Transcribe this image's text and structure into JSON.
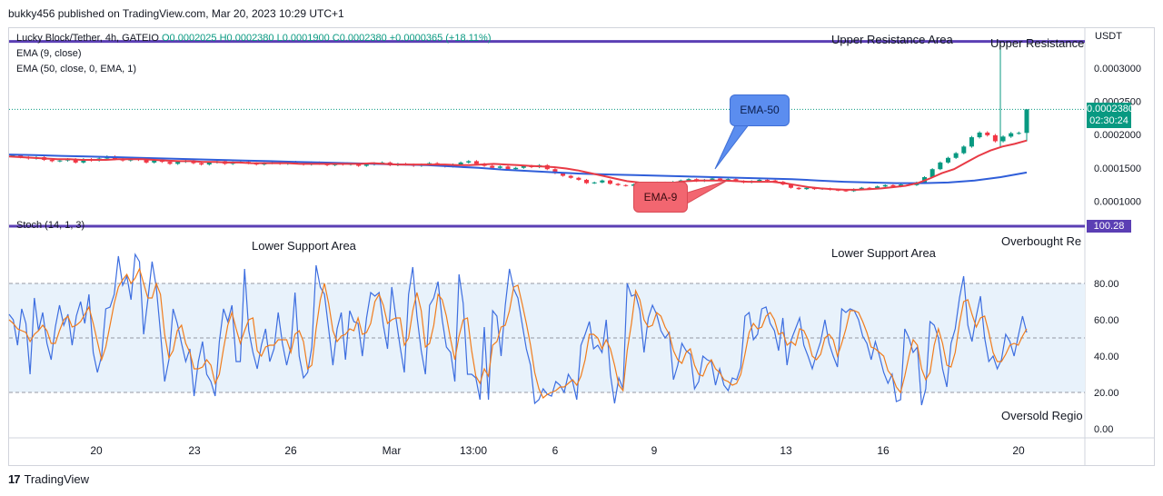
{
  "header": {
    "publisher_line": "bukky456 published on TradingView.com, Mar 20, 2023 10:29 UTC+1"
  },
  "legend": {
    "symbol": "Lucky Block/Tether, 4h, GATEIO",
    "ohlc": "O0.0002025  H0.0002380  L0.0001900  C0.0002380  +0.0000365 (+18.11%)",
    "ema9": "EMA (9, close)",
    "ema50": "EMA (50, close, 0, EMA, 1)",
    "stoch": "Stoch (14, 1, 3)"
  },
  "price_axis": {
    "currency": "USDT",
    "current_price": "0.0002380",
    "countdown": "02:30:24",
    "stoch_level": "100.28"
  },
  "annotations": {
    "upper_resistance_area": "Upper Resistance Area",
    "upper_resistance_right": "Upper Resistance",
    "lower_support_area_1": "Lower Support Area",
    "lower_support_area_2": "Lower Support Area",
    "overbought": "Overbought Re",
    "oversold": "Oversold Regio",
    "ema50_callout": "EMA-50",
    "ema9_callout": "EMA-9"
  },
  "colors": {
    "up": "#089981",
    "down": "#f23645",
    "ema9": "#e83a45",
    "ema50": "#2f5ed9",
    "stoch_k": "#3d6ee0",
    "stoch_d": "#f07c1c",
    "resistance_line": "#5b3fb4",
    "stoch_band": "#e8f2fb",
    "callout_blue": "#5b8def",
    "callout_red": "#f26670"
  },
  "footer": {
    "brand": "TradingView"
  },
  "chart_data": [
    {
      "type": "candlestick",
      "title": "Lucky Block/Tether, 4h, GATEIO",
      "ylabel": "USDT",
      "ylim": [
        8e-05,
        0.00036
      ],
      "yticks": [
        "0.0001000",
        "0.0001500",
        "0.0002000",
        "0.0002500",
        "0.0003000"
      ],
      "xticks": [
        "20",
        "23",
        "26",
        "Mar",
        "13:00",
        "6",
        "9",
        "13",
        "16",
        "20"
      ],
      "ohlc_last": {
        "open": 0.0002025,
        "high": 0.000238,
        "low": 0.00019,
        "close": 0.000238,
        "change": 3.65e-05,
        "change_pct": 18.11
      },
      "resistance_level": 0.00034,
      "close_approx": [
        0.000169,
        0.000166,
        0.000164,
        0.000166,
        0.000162,
        0.00016,
        0.000161,
        0.000163,
        0.000158,
        0.000163,
        0.000161,
        0.000164,
        0.000167,
        0.000163,
        0.000161,
        0.000164,
        0.000162,
        0.000158,
        0.000161,
        0.000159,
        0.000156,
        0.000159,
        0.000161,
        0.000157,
        0.000155,
        0.000158,
        0.00016,
        0.000156,
        0.000158,
        0.000159,
        0.000157,
        0.000155,
        0.000157,
        0.000158,
        0.000156,
        0.000159,
        0.000157,
        0.000155,
        0.000158,
        0.000156,
        0.000154,
        0.000157,
        0.000155,
        0.000156,
        0.000153,
        0.000155,
        0.000157,
        0.000158,
        0.000154,
        0.000156,
        0.000155,
        0.000153,
        0.000155,
        0.000157,
        0.000154,
        0.000152,
        0.000155,
        0.000158,
        0.00016,
        0.000156,
        0.000153,
        0.00015,
        0.000152,
        0.000148,
        0.00015,
        0.000153,
        0.000151,
        0.000154,
        0.000148,
        0.000142,
        0.000138,
        0.000135,
        0.000132,
        0.000127,
        0.000128,
        0.000131,
        0.000126,
        0.000124,
        0.000123,
        0.000125,
        0.000122,
        0.000126,
        0.000128,
        0.000125,
        0.000129,
        0.000131,
        0.000133,
        0.00013,
        0.000132,
        0.000134,
        0.000131,
        0.000133,
        0.00013,
        0.000128,
        0.00013,
        0.000132,
        0.000131,
        0.000129,
        0.000125,
        0.00012,
        0.000118,
        0.00012,
        0.000118,
        0.000119,
        0.000117,
        0.000116,
        0.000115,
        0.000118,
        0.00012,
        0.000119,
        0.000122,
        0.000124,
        0.000122,
        0.000125,
        0.000124,
        0.000128,
        0.000136,
        0.000148,
        0.000158,
        0.000165,
        0.000172,
        0.000182,
        0.000196,
        0.000203,
        0.000199,
        0.00019,
        0.000197,
        0.000202,
        0.0002025,
        0.000238
      ],
      "ema9_approx": [
        0.000167,
        0.000166,
        0.000165,
        0.000164,
        0.000163,
        0.000163,
        0.000162,
        0.000162,
        0.000162,
        0.000163,
        0.000163,
        0.000163,
        0.000162,
        0.000161,
        0.00016,
        0.00016,
        0.000159,
        0.000159,
        0.000158,
        0.000158,
        0.000157,
        0.000157,
        0.000157,
        0.000157,
        0.000156,
        0.000156,
        0.000156,
        0.000156,
        0.000156,
        0.000156,
        0.000157,
        0.000156,
        0.000155,
        0.000155,
        0.000155,
        0.000155,
        0.000155,
        0.000154,
        0.000154,
        0.000155,
        0.000156,
        0.000155,
        0.000154,
        0.000153,
        0.000152,
        0.000151,
        0.000149,
        0.000146,
        0.000142,
        0.000138,
        0.000134,
        0.00013,
        0.000128,
        0.000127,
        0.000127,
        0.000128,
        0.00013,
        0.000131,
        0.000131,
        0.000131,
        0.00013,
        0.000129,
        0.000129,
        0.000129,
        0.000127,
        0.000124,
        0.000121,
        0.000119,
        0.000118,
        0.000117,
        0.000117,
        0.000118,
        0.000119,
        0.000121,
        0.000123,
        0.000127,
        0.000134,
        0.000142,
        0.000148,
        0.000158,
        0.000168,
        0.000176,
        0.000182,
        0.000186,
        0.000191
      ],
      "ema50_approx": [
        0.00017,
        0.000169,
        0.000168,
        0.000167,
        0.000166,
        0.000165,
        0.000164,
        0.000163,
        0.000162,
        0.000161,
        0.00016,
        0.000159,
        0.000158,
        0.000157,
        0.000156,
        0.000155,
        0.000154,
        0.000152,
        0.00015,
        0.000147,
        0.000145,
        0.000143,
        0.000141,
        0.00014,
        0.000139,
        0.000138,
        0.000137,
        0.000136,
        0.000135,
        0.000134,
        0.000133,
        0.000131,
        0.000129,
        0.000128,
        0.000127,
        0.000127,
        0.000128,
        0.000131,
        0.000136,
        0.000143
      ]
    },
    {
      "type": "line",
      "title": "Stoch (14, 1, 3)",
      "ylim": [
        -5,
        110
      ],
      "yticks": [
        "0.00",
        "20.00",
        "40.00",
        "60.00",
        "80.00",
        "100.28"
      ],
      "band": [
        20,
        80
      ],
      "midline": 50,
      "series": [
        {
          "name": "%K",
          "values": [
            63,
            60,
            46,
            66,
            58,
            30,
            72,
            54,
            64,
            47,
            38,
            56,
            68,
            57,
            63,
            46,
            62,
            70,
            58,
            74,
            42,
            31,
            40,
            66,
            67,
            74,
            95,
            79,
            84,
            71,
            96,
            92,
            52,
            71,
            92,
            78,
            53,
            26,
            38,
            66,
            58,
            47,
            37,
            44,
            18,
            37,
            48,
            30,
            26,
            18,
            48,
            66,
            59,
            68,
            37,
            37,
            88,
            54,
            42,
            33,
            46,
            55,
            37,
            44,
            64,
            47,
            35,
            45,
            75,
            40,
            28,
            31,
            45,
            90,
            78,
            74,
            55,
            35,
            55,
            64,
            38,
            65,
            59,
            58,
            40,
            61,
            75,
            73,
            75,
            57,
            44,
            78,
            61,
            45,
            31,
            74,
            89,
            62,
            43,
            30,
            68,
            72,
            81,
            60,
            45,
            42,
            26,
            85,
            69,
            30,
            30,
            28,
            16,
            56,
            16,
            65,
            62,
            40,
            68,
            88,
            77,
            72,
            58,
            44,
            35,
            14,
            16,
            22,
            19,
            18,
            26,
            24,
            20,
            30,
            26,
            16,
            46,
            52,
            59,
            44,
            46,
            42,
            60,
            30,
            14,
            28,
            22,
            80,
            73,
            74,
            65,
            42,
            61,
            68,
            63,
            54,
            50,
            53,
            27,
            35,
            47,
            43,
            41,
            22,
            26,
            40,
            38,
            37,
            24,
            33,
            24,
            21,
            28,
            27,
            34,
            62,
            64,
            49,
            52,
            66,
            67,
            58,
            54,
            43,
            61,
            35,
            49,
            55,
            61,
            46,
            40,
            33,
            41,
            48,
            60,
            47,
            40,
            34,
            66,
            64,
            66,
            65,
            60,
            51,
            47,
            38,
            48,
            40,
            31,
            25,
            30,
            15,
            16,
            55,
            50,
            42,
            45,
            13,
            22,
            59,
            57,
            50,
            33,
            23,
            47,
            55,
            72,
            84,
            57,
            48,
            62,
            73,
            50,
            37,
            40,
            33,
            38,
            52,
            48,
            40,
            51,
            62,
            53
          ]
        },
        {
          "name": "%D",
          "values": [
            60,
            58,
            55,
            54,
            53,
            48,
            52,
            54,
            57,
            54,
            47,
            47,
            54,
            60,
            62,
            56,
            57,
            59,
            63,
            67,
            58,
            48,
            38,
            45,
            57,
            69,
            78,
            82,
            85,
            80,
            83,
            88,
            80,
            72,
            72,
            80,
            74,
            52,
            39,
            43,
            54,
            57,
            47,
            42,
            33,
            33,
            34,
            38,
            35,
            25,
            30,
            44,
            57,
            64,
            55,
            47,
            54,
            60,
            61,
            43,
            40,
            45,
            46,
            46,
            49,
            49,
            49,
            42,
            52,
            54,
            48,
            33,
            35,
            55,
            71,
            80,
            69,
            54,
            48,
            51,
            52,
            55,
            54,
            61,
            52,
            53,
            58,
            70,
            74,
            68,
            58,
            60,
            61,
            61,
            46,
            50,
            65,
            75,
            65,
            45,
            47,
            57,
            74,
            71,
            62,
            49,
            38,
            51,
            60,
            61,
            43,
            29,
            25,
            33,
            29,
            46,
            48,
            56,
            57,
            65,
            78,
            79,
            69,
            58,
            46,
            31,
            22,
            17,
            19,
            20,
            21,
            23,
            23,
            25,
            27,
            24,
            29,
            38,
            52,
            52,
            50,
            44,
            49,
            44,
            35,
            24,
            21,
            43,
            58,
            76,
            71,
            60,
            56,
            57,
            64,
            62,
            56,
            52,
            43,
            38,
            36,
            42,
            44,
            35,
            30,
            29,
            35,
            38,
            33,
            31,
            27,
            26,
            24,
            25,
            30,
            41,
            53,
            58,
            55,
            56,
            62,
            64,
            60,
            52,
            53,
            46,
            48,
            46,
            55,
            54,
            49,
            40,
            38,
            41,
            50,
            52,
            49,
            40,
            47,
            55,
            65,
            65,
            64,
            59,
            53,
            45,
            44,
            42,
            40,
            32,
            29,
            23,
            20,
            29,
            40,
            49,
            46,
            33,
            27,
            31,
            46,
            55,
            47,
            35,
            34,
            42,
            58,
            70,
            71,
            63,
            56,
            61,
            62,
            53,
            42,
            37,
            37,
            41,
            46,
            47,
            46,
            51,
            55
          ]
        }
      ],
      "annotations": [
        "Lower Support Area",
        "Lower Support Area",
        "Overbought Re",
        "Oversold Regio"
      ]
    }
  ]
}
